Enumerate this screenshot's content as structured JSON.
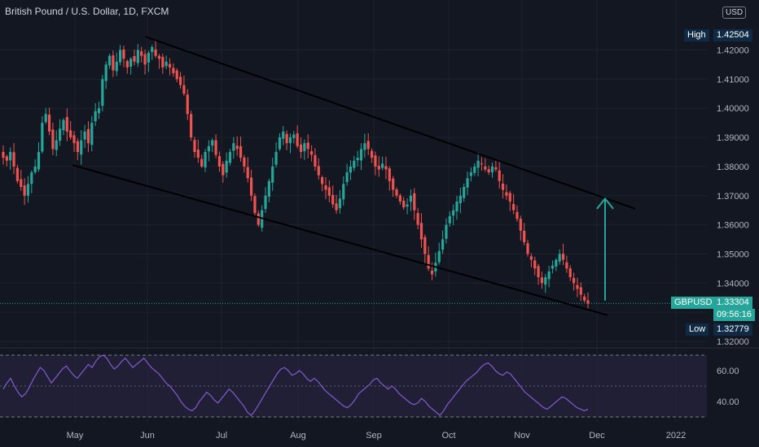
{
  "header": {
    "title": "British Pound / U.S. Dollar, 1D, FXCM",
    "currency": "USD"
  },
  "badges": {
    "high_label": "High",
    "high_value": "1.42504",
    "low_label": "Low",
    "low_value": "1.32779",
    "symbol": "GBPUSD",
    "last_value": "1.33304",
    "countdown": "09:56:16"
  },
  "colors": {
    "background": "#131722",
    "up": "#26a69a",
    "down": "#ef5350",
    "rsi": "#7e57c2",
    "rsi_band": "#2a2545",
    "badge": "#0f2a45",
    "price_line": "#26a69a",
    "arrow": "#26a69a"
  },
  "chart_data": [
    {
      "type": "candlestick",
      "title": "British Pound / U.S. Dollar, 1D, FXCM",
      "x_axis": {
        "labels": [
          "May",
          "Jun",
          "Jul",
          "Aug",
          "Sep",
          "Oct",
          "Nov",
          "Dec",
          "2022"
        ]
      },
      "y_axis": {
        "range": [
          1.3186,
          1.43
        ],
        "ticks": [
          "1.32000",
          "1.33000",
          "1.34000",
          "1.35000",
          "1.36000",
          "1.37000",
          "1.38000",
          "1.39000",
          "1.40000",
          "1.41000",
          "1.42000"
        ]
      },
      "high": 1.42504,
      "low": 1.32779,
      "last": 1.33304,
      "approx_closes": [
        1.383,
        1.382,
        1.385,
        1.38,
        1.375,
        1.373,
        1.37,
        1.374,
        1.378,
        1.38,
        1.385,
        1.395,
        1.398,
        1.392,
        1.386,
        1.389,
        1.393,
        1.396,
        1.392,
        1.39,
        1.388,
        1.385,
        1.389,
        1.392,
        1.388,
        1.395,
        1.399,
        1.4,
        1.41,
        1.415,
        1.418,
        1.413,
        1.416,
        1.42,
        1.417,
        1.414,
        1.417,
        1.416,
        1.42,
        1.418,
        1.415,
        1.419,
        1.421,
        1.418,
        1.417,
        1.414,
        1.416,
        1.414,
        1.412,
        1.41,
        1.408,
        1.405,
        1.398,
        1.39,
        1.385,
        1.383,
        1.38,
        1.385,
        1.387,
        1.389,
        1.384,
        1.38,
        1.377,
        1.382,
        1.385,
        1.388,
        1.386,
        1.383,
        1.38,
        1.376,
        1.37,
        1.364,
        1.36,
        1.365,
        1.37,
        1.375,
        1.38,
        1.385,
        1.39,
        1.392,
        1.388,
        1.39,
        1.391,
        1.387,
        1.385,
        1.388,
        1.386,
        1.384,
        1.38,
        1.377,
        1.374,
        1.372,
        1.37,
        1.367,
        1.365,
        1.369,
        1.374,
        1.378,
        1.38,
        1.382,
        1.383,
        1.386,
        1.388,
        1.386,
        1.383,
        1.38,
        1.379,
        1.381,
        1.379,
        1.375,
        1.372,
        1.37,
        1.368,
        1.366,
        1.367,
        1.37,
        1.365,
        1.36,
        1.355,
        1.35,
        1.345,
        1.343,
        1.347,
        1.351,
        1.355,
        1.36,
        1.363,
        1.365,
        1.368,
        1.37,
        1.373,
        1.376,
        1.378,
        1.38,
        1.382,
        1.381,
        1.379,
        1.378,
        1.38,
        1.379,
        1.375,
        1.372,
        1.37,
        1.368,
        1.365,
        1.362,
        1.358,
        1.354,
        1.35,
        1.348,
        1.345,
        1.342,
        1.34,
        1.342,
        1.344,
        1.346,
        1.348,
        1.35,
        1.348,
        1.345,
        1.342,
        1.34,
        1.338,
        1.336,
        1.334,
        1.333
      ]
    },
    {
      "type": "line",
      "title": "RSI",
      "y_axis": {
        "ticks": [
          "40.00",
          "60.00"
        ],
        "bands": [
          30,
          70
        ],
        "mid": 50
      },
      "approx_values": [
        48,
        52,
        55,
        50,
        46,
        43,
        45,
        49,
        54,
        58,
        62,
        60,
        56,
        52,
        55,
        58,
        61,
        63,
        60,
        57,
        55,
        58,
        61,
        64,
        62,
        66,
        69,
        70,
        68,
        64,
        61,
        63,
        66,
        68,
        65,
        62,
        64,
        66,
        68,
        65,
        62,
        60,
        58,
        55,
        52,
        50,
        47,
        44,
        40,
        37,
        35,
        34,
        36,
        40,
        43,
        46,
        44,
        41,
        39,
        42,
        45,
        48,
        46,
        43,
        40,
        37,
        33,
        31,
        34,
        38,
        42,
        46,
        50,
        54,
        58,
        61,
        62,
        60,
        57,
        58,
        60,
        58,
        55,
        53,
        55,
        53,
        50,
        47,
        45,
        43,
        41,
        39,
        37,
        36,
        38,
        41,
        45,
        47,
        49,
        51,
        54,
        55,
        52,
        50,
        48,
        50,
        48,
        45,
        43,
        41,
        39,
        38,
        39,
        42,
        40,
        37,
        35,
        33,
        31,
        34,
        38,
        41,
        44,
        47,
        50,
        53,
        55,
        57,
        59,
        62,
        64,
        65,
        63,
        60,
        58,
        57,
        59,
        58,
        55,
        52,
        49,
        46,
        44,
        42,
        40,
        38,
        36,
        35,
        37,
        39,
        41,
        43,
        42,
        40,
        38,
        36,
        35,
        34,
        35
      ]
    }
  ]
}
